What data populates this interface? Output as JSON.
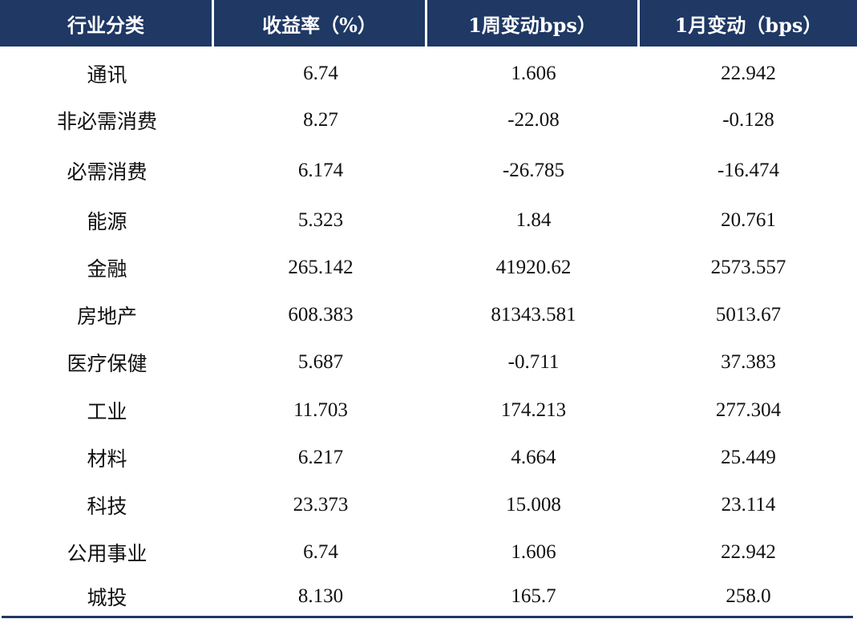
{
  "table": {
    "headers": [
      "行业分类",
      "收益率（%）",
      "1周变动bps）",
      "1月变动（bps）"
    ],
    "rows": [
      [
        "通讯",
        "6.74",
        "1.606",
        "22.942"
      ],
      [
        "非必需消费",
        "8.27",
        "-22.08",
        "-0.128"
      ],
      [
        "必需消费",
        "6.174",
        "-26.785",
        "-16.474"
      ],
      [
        "能源",
        "5.323",
        "1.84",
        "20.761"
      ],
      [
        "金融",
        "265.142",
        "41920.62",
        "2573.557"
      ],
      [
        "房地产",
        "608.383",
        "81343.581",
        "5013.67"
      ],
      [
        "医疗保健",
        "5.687",
        "-0.711",
        "37.383"
      ],
      [
        "工业",
        "11.703",
        "174.213",
        "277.304"
      ],
      [
        "材料",
        "6.217",
        "4.664",
        "25.449"
      ],
      [
        "科技",
        "23.373",
        "15.008",
        "23.114"
      ],
      [
        "公用事业",
        "6.74",
        "1.606",
        "22.942"
      ],
      [
        "城投",
        "8.130",
        "165.7",
        "258.0"
      ]
    ]
  },
  "colors": {
    "header_bg": "#1f3864",
    "header_text": "#ffffff",
    "body_text": "#111111",
    "rule": "#1f3864"
  }
}
